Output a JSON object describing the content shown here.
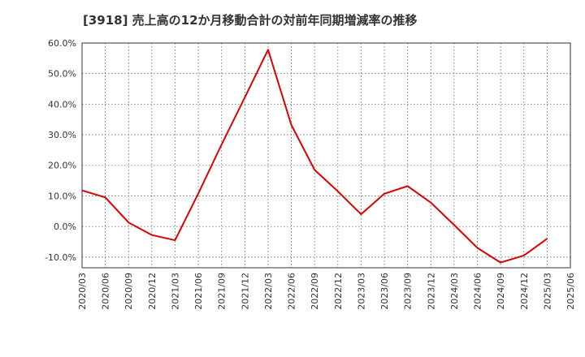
{
  "chart_data": {
    "type": "line",
    "title": "[3918]  売上高の12か月移動合計の対前年同期増減率の推移",
    "xlabel": "",
    "ylabel": "",
    "ylim": [
      -13.5,
      60
    ],
    "y_ticks": [
      60,
      50,
      40,
      30,
      20,
      10,
      0,
      -10
    ],
    "y_tick_labels": [
      "60.0%",
      "50.0%",
      "40.0%",
      "30.0%",
      "20.0%",
      "10.0%",
      "0.0%",
      "-10.0%"
    ],
    "grid": true,
    "categories": [
      "2020/03",
      "2020/06",
      "2020/09",
      "2020/12",
      "2021/03",
      "2021/06",
      "2021/09",
      "2021/12",
      "2022/03",
      "2022/06",
      "2022/09",
      "2022/12",
      "2023/03",
      "2023/06",
      "2023/09",
      "2023/12",
      "2024/03",
      "2024/06",
      "2024/09",
      "2024/12",
      "2025/03",
      "2025/06"
    ],
    "series": [
      {
        "name": "対前年同期増減率",
        "color": "#dd0000",
        "values": [
          11.8,
          9.5,
          1.3,
          -2.8,
          -4.5,
          10.8,
          26.8,
          42.2,
          57.8,
          33.2,
          18.5,
          11.5,
          4.0,
          10.7,
          13.2,
          7.8,
          0.5,
          -7.0,
          -11.8,
          -9.5,
          -4.0,
          null
        ]
      }
    ]
  }
}
